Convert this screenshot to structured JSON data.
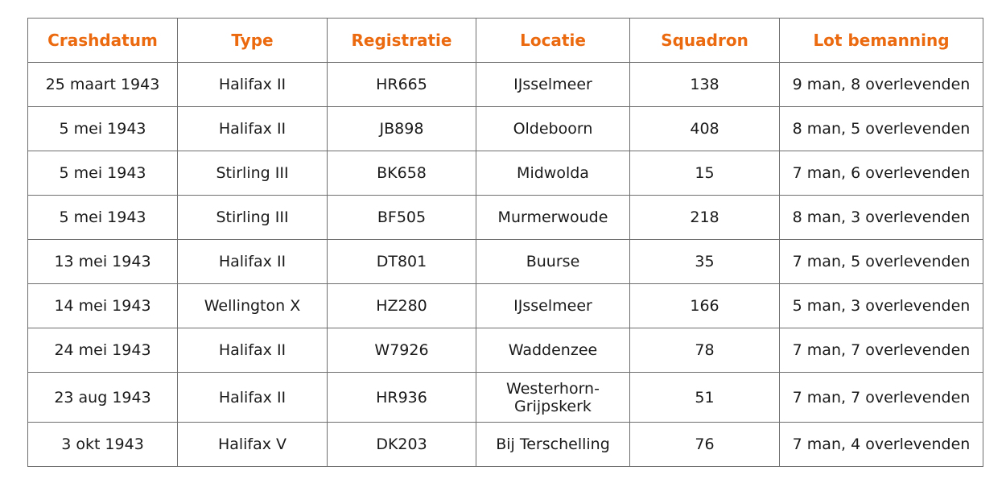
{
  "headers": [
    "Crashdatum",
    "Type",
    "Registratie",
    "Locatie",
    "Squadron",
    "Lot bemanning"
  ],
  "header_color": "#ec6a0f",
  "rows": [
    [
      "25 maart 1943",
      "Halifax II",
      "HR665",
      "IJsselmeer",
      "138",
      "9 man, 8 overlevenden"
    ],
    [
      "5 mei 1943",
      "Halifax II",
      "JB898",
      "Oldeboorn",
      "408",
      "8 man, 5 overlevenden"
    ],
    [
      "5 mei 1943",
      "Stirling III",
      "BK658",
      "Midwolda",
      "15",
      "7 man, 6 overlevenden"
    ],
    [
      "5 mei 1943",
      "Stirling III",
      "BF505",
      "Murmerwoude",
      "218",
      "8 man, 3 overlevenden"
    ],
    [
      "13 mei 1943",
      "Halifax II",
      "DT801",
      "Buurse",
      "35",
      "7 man, 5 overlevenden"
    ],
    [
      "14 mei 1943",
      "Wellington X",
      "HZ280",
      "IJsselmeer",
      "166",
      "5 man, 3 overlevenden"
    ],
    [
      "24 mei 1943",
      "Halifax II",
      "W7926",
      "Waddenzee",
      "78",
      "7 man, 7 overlevenden"
    ],
    [
      "23 aug 1943",
      "Halifax II",
      "HR936",
      "Westerhorn-\nGrijpskerk",
      "51",
      "7 man, 7 overlevenden"
    ],
    [
      "3 okt 1943",
      "Halifax V",
      "DK203",
      "Bij Terschelling",
      "76",
      "7 man, 4 overlevenden"
    ]
  ]
}
